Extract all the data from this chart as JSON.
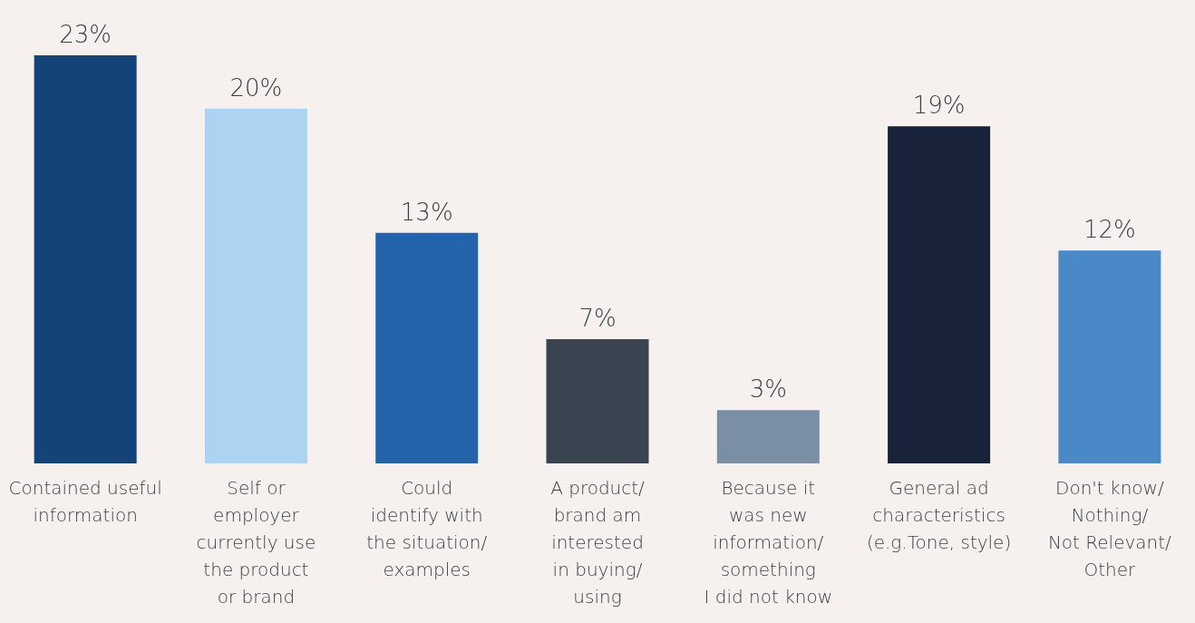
{
  "chart_data": {
    "type": "bar",
    "categories": [
      "Contained useful\ninformation",
      "Self or\nemployer\ncurrently use\nthe product\nor brand",
      "Could\nidentify with\nthe situation/\nexamples",
      "A product/\nbrand am\ninterested\nin buying/\nusing",
      "Because it\nwas new\ninformation/\nsomething\nI did not know",
      "General ad\ncharacteristics\n(e.g.Tone, style)",
      "Don't know/\nNothing/\nNot Relevant/\nOther"
    ],
    "values": [
      23,
      20,
      13,
      7,
      3,
      19,
      12
    ],
    "colors": [
      "#134379",
      "#acd3f2",
      "#2364ad",
      "#3a4350",
      "#7a8fa6",
      "#182239",
      "#4a89c8"
    ],
    "value_labels": [
      "23%",
      "20%",
      "13%",
      "7%",
      "3%",
      "19%",
      "12%"
    ],
    "grid": false,
    "legend": false
  }
}
